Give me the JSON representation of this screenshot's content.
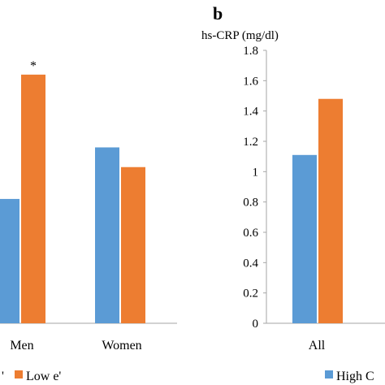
{
  "colors": {
    "high": "#5B9BD5",
    "low": "#ED7D31",
    "axis": "#A6A6A6"
  },
  "chart_data": [
    {
      "type": "bar",
      "panel": "a",
      "categories": [
        "Men",
        "Women"
      ],
      "series": [
        {
          "name": "High e'",
          "values": [
            0.82,
            1.16
          ]
        },
        {
          "name": "Low e'",
          "values": [
            1.64,
            1.03
          ]
        }
      ],
      "annotations": [
        {
          "category": "Men",
          "series": "Low e'",
          "text": "*"
        }
      ],
      "ylim": [
        0,
        1.8
      ]
    },
    {
      "type": "bar",
      "panel_label": "b",
      "panel": "b",
      "ylabel": "hs-CRP (mg/dl)",
      "categories": [
        "All"
      ],
      "series": [
        {
          "name": "High e'",
          "values": [
            1.11
          ]
        },
        {
          "name": "Low e'",
          "values": [
            1.48
          ]
        }
      ],
      "yticks": [
        "0",
        "0.2",
        "0.4",
        "0.6",
        "0.8",
        "1",
        "1.2",
        "1.4",
        "1.6",
        "1.8"
      ],
      "ylim": [
        0,
        1.8
      ],
      "grid": false
    }
  ],
  "legend": {
    "left_text_1": "'",
    "left_text_2": "Low e'",
    "right_text": "High C"
  }
}
